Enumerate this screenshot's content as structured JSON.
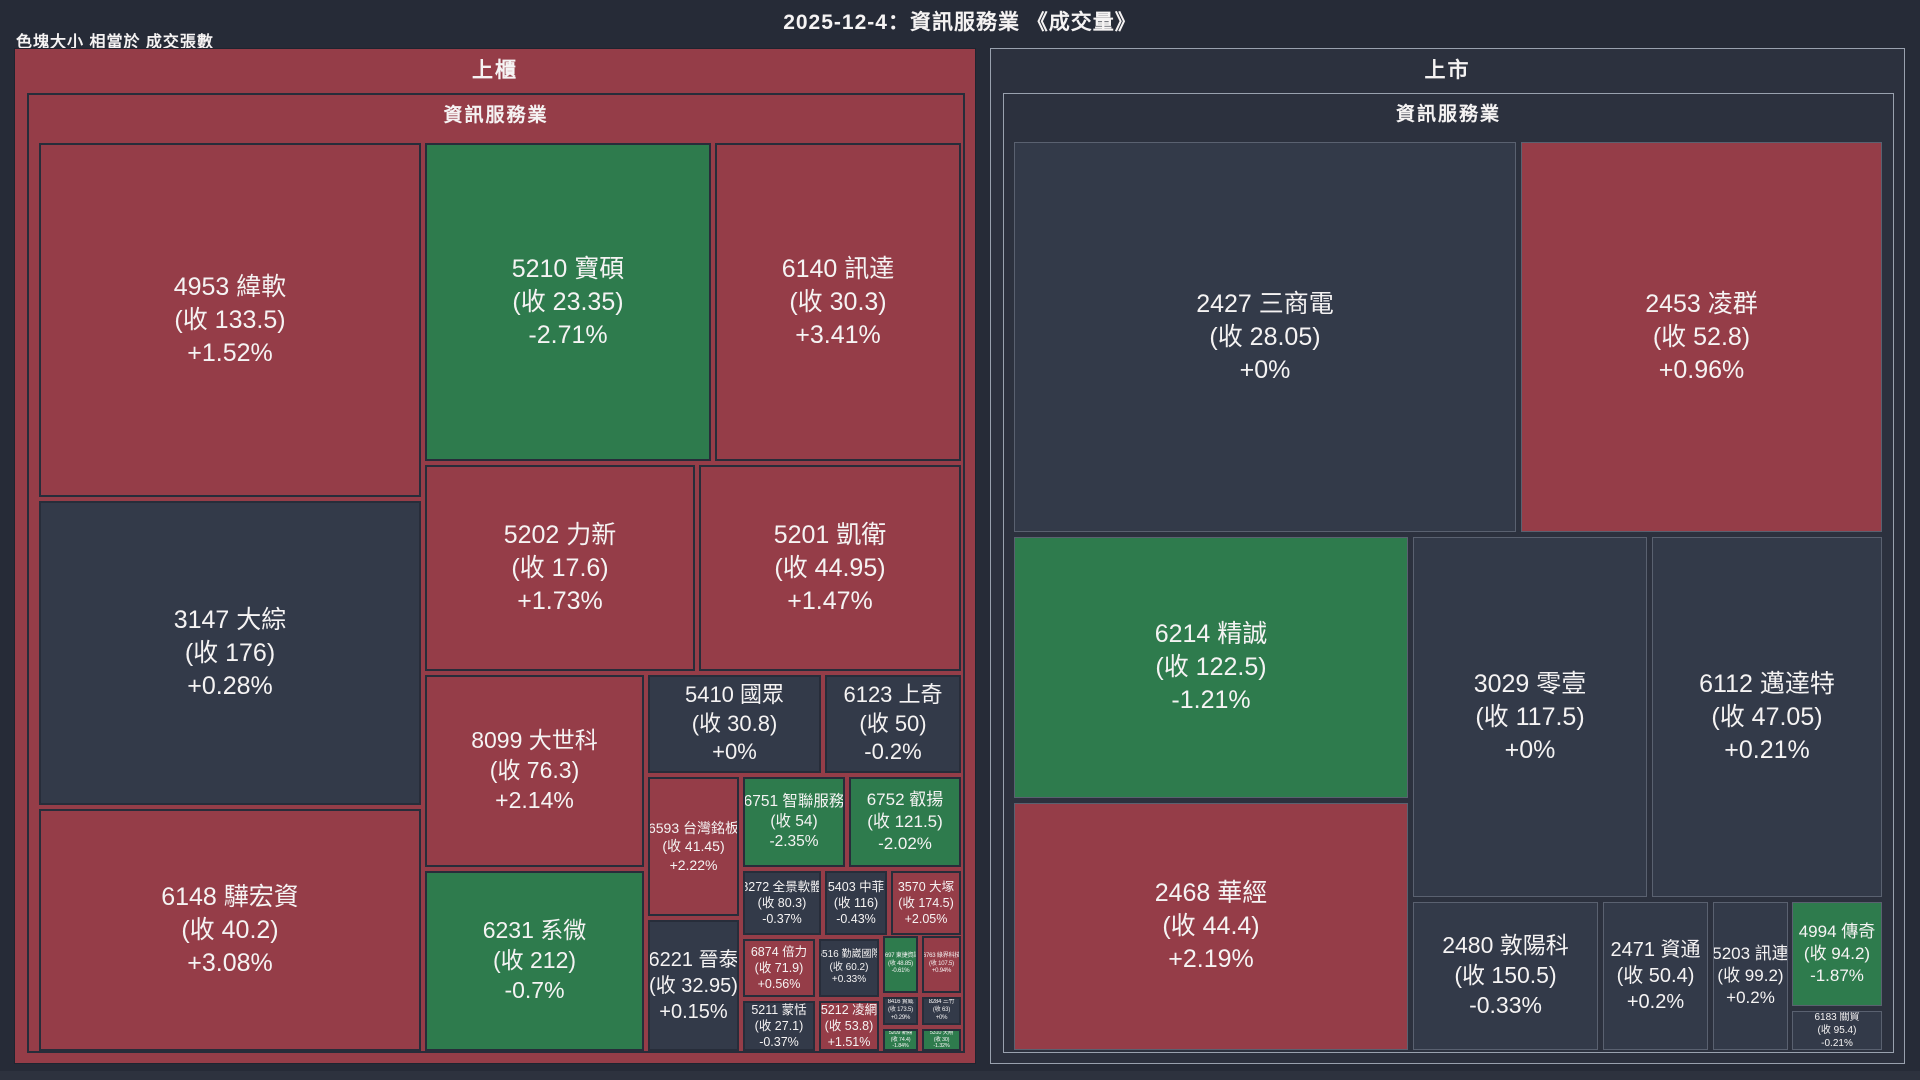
{
  "header": {
    "title": "2025-12-4：資訊服務業 《成交量》",
    "legend": "色塊大小 相當於 成交張數"
  },
  "colors": {
    "up": "#953d48",
    "down": "#2e7b4d",
    "flat": "#333a49",
    "panel_listed_bg": "#2c313e",
    "text": "#f5f3f3"
  },
  "price_prefix": "收",
  "panels": [
    {
      "id": "otc",
      "market": "上櫃",
      "industry": "資訊服務業",
      "stocks": [
        {
          "code": "4953",
          "name": "緯軟",
          "close": "133.5",
          "change": "+1.52%",
          "tone": "up"
        },
        {
          "code": "5210",
          "name": "寶碩",
          "close": "23.35",
          "change": "-2.71%",
          "tone": "down"
        },
        {
          "code": "6140",
          "name": "訊達",
          "close": "30.3",
          "change": "+3.41%",
          "tone": "up"
        },
        {
          "code": "3147",
          "name": "大綜",
          "close": "176",
          "change": "+0.28%",
          "tone": "flat"
        },
        {
          "code": "5202",
          "name": "力新",
          "close": "17.6",
          "change": "+1.73%",
          "tone": "up"
        },
        {
          "code": "5201",
          "name": "凱衛",
          "close": "44.95",
          "change": "+1.47%",
          "tone": "up"
        },
        {
          "code": "6148",
          "name": "驊宏資",
          "close": "40.2",
          "change": "+3.08%",
          "tone": "up"
        },
        {
          "code": "8099",
          "name": "大世科",
          "close": "76.3",
          "change": "+2.14%",
          "tone": "up"
        },
        {
          "code": "6231",
          "name": "系微",
          "close": "212",
          "change": "-0.7%",
          "tone": "down"
        },
        {
          "code": "5410",
          "name": "國眾",
          "close": "30.8",
          "change": "+0%",
          "tone": "flat"
        },
        {
          "code": "6123",
          "name": "上奇",
          "close": "50",
          "change": "-0.2%",
          "tone": "flat"
        },
        {
          "code": "6593",
          "name": "台灣銘板",
          "close": "41.45",
          "change": "+2.22%",
          "tone": "up"
        },
        {
          "code": "6751",
          "name": "智聯服務",
          "close": "54",
          "change": "-2.35%",
          "tone": "down"
        },
        {
          "code": "6752",
          "name": "叡揚",
          "close": "121.5",
          "change": "-2.02%",
          "tone": "down"
        },
        {
          "code": "6221",
          "name": "晉泰",
          "close": "32.95",
          "change": "+0.15%",
          "tone": "flat"
        },
        {
          "code": "8272",
          "name": "全景軟體",
          "close": "80.3",
          "change": "-0.37%",
          "tone": "flat"
        },
        {
          "code": "5403",
          "name": "中菲",
          "close": "116",
          "change": "-0.43%",
          "tone": "flat"
        },
        {
          "code": "3570",
          "name": "大塚",
          "close": "174.5",
          "change": "+2.05%",
          "tone": "up"
        },
        {
          "code": "6874",
          "name": "倍力",
          "close": "71.9",
          "change": "+0.56%",
          "tone": "up"
        },
        {
          "code": "6516",
          "name": "勤崴國際",
          "close": "60.2",
          "change": "+0.33%",
          "tone": "flat"
        },
        {
          "code": "5211",
          "name": "蒙恬",
          "close": "27.1",
          "change": "-0.37%",
          "tone": "flat"
        },
        {
          "code": "5212",
          "name": "凌網",
          "close": "53.8",
          "change": "+1.51%",
          "tone": "up"
        },
        {
          "code": "6697",
          "name": "東捷資訊",
          "close": "48.85",
          "change": "-0.61%",
          "tone": "down"
        },
        {
          "code": "6763",
          "name": "綠界科技",
          "close": "107.5",
          "change": "+0.94%",
          "tone": "up"
        },
        {
          "code": "8416",
          "name": "實威",
          "close": "173.5",
          "change": "+0.29%",
          "tone": "flat"
        },
        {
          "code": "8284",
          "name": "三竹",
          "close": "63",
          "change": "+0%",
          "tone": "flat"
        },
        {
          "code": "5209",
          "name": "新鼎",
          "close": "74.4",
          "change": "-1.84%",
          "tone": "down"
        },
        {
          "code": "5310",
          "name": "天剛",
          "close": "30",
          "change": "-1.32%",
          "tone": "down"
        }
      ]
    },
    {
      "id": "listed",
      "market": "上市",
      "industry": "資訊服務業",
      "stocks": [
        {
          "code": "2427",
          "name": "三商電",
          "close": "28.05",
          "change": "+0%",
          "tone": "flat"
        },
        {
          "code": "2453",
          "name": "凌群",
          "close": "52.8",
          "change": "+0.96%",
          "tone": "up"
        },
        {
          "code": "6214",
          "name": "精誠",
          "close": "122.5",
          "change": "-1.21%",
          "tone": "down"
        },
        {
          "code": "3029",
          "name": "零壹",
          "close": "117.5",
          "change": "+0%",
          "tone": "flat"
        },
        {
          "code": "6112",
          "name": "邁達特",
          "close": "47.05",
          "change": "+0.21%",
          "tone": "flat"
        },
        {
          "code": "2468",
          "name": "華經",
          "close": "44.4",
          "change": "+2.19%",
          "tone": "up"
        },
        {
          "code": "2480",
          "name": "敦陽科",
          "close": "150.5",
          "change": "-0.33%",
          "tone": "flat"
        },
        {
          "code": "2471",
          "name": "資通",
          "close": "50.4",
          "change": "+0.2%",
          "tone": "flat"
        },
        {
          "code": "5203",
          "name": "訊連",
          "close": "99.2",
          "change": "+0.2%",
          "tone": "flat"
        },
        {
          "code": "4994",
          "name": "傳奇",
          "close": "94.2",
          "change": "-1.87%",
          "tone": "down"
        },
        {
          "code": "6183",
          "name": "關貿",
          "close": "95.4",
          "change": "-0.21%",
          "tone": "flat"
        }
      ]
    }
  ],
  "chart_data": {
    "type": "heatmap",
    "subtype": "treemap",
    "title": "2025-12-4：資訊服務業 《成交量》",
    "size_metric": "成交張數 (trading volume, lots)",
    "color_rule": {
      "up": "red",
      "down": "green",
      "near_flat": "dark"
    },
    "groups": [
      {
        "market": "上櫃",
        "industry": "資訊服務業",
        "items": [
          {
            "code": "4953",
            "name": "緯軟",
            "close": 133.5,
            "change_pct": 1.52
          },
          {
            "code": "5210",
            "name": "寶碩",
            "close": 23.35,
            "change_pct": -2.71
          },
          {
            "code": "6140",
            "name": "訊達",
            "close": 30.3,
            "change_pct": 3.41
          },
          {
            "code": "3147",
            "name": "大綜",
            "close": 176,
            "change_pct": 0.28
          },
          {
            "code": "5202",
            "name": "力新",
            "close": 17.6,
            "change_pct": 1.73
          },
          {
            "code": "5201",
            "name": "凱衛",
            "close": 44.95,
            "change_pct": 1.47
          },
          {
            "code": "6148",
            "name": "驊宏資",
            "close": 40.2,
            "change_pct": 3.08
          },
          {
            "code": "8099",
            "name": "大世科",
            "close": 76.3,
            "change_pct": 2.14
          },
          {
            "code": "6231",
            "name": "系微",
            "close": 212,
            "change_pct": -0.7
          },
          {
            "code": "5410",
            "name": "國眾",
            "close": 30.8,
            "change_pct": 0
          },
          {
            "code": "6123",
            "name": "上奇",
            "close": 50,
            "change_pct": -0.2
          },
          {
            "code": "6593",
            "name": "台灣銘板",
            "close": 41.45,
            "change_pct": 2.22
          },
          {
            "code": "6751",
            "name": "智聯服務",
            "close": 54,
            "change_pct": -2.35
          },
          {
            "code": "6752",
            "name": "叡揚",
            "close": 121.5,
            "change_pct": -2.02
          },
          {
            "code": "6221",
            "name": "晉泰",
            "close": 32.95,
            "change_pct": 0.15
          },
          {
            "code": "8272",
            "name": "全景軟體",
            "close": 80.3,
            "change_pct": -0.37
          },
          {
            "code": "5403",
            "name": "中菲",
            "close": 116,
            "change_pct": -0.43
          },
          {
            "code": "3570",
            "name": "大塚",
            "close": 174.5,
            "change_pct": 2.05
          },
          {
            "code": "6874",
            "name": "倍力",
            "close": 71.9,
            "change_pct": 0.56
          },
          {
            "code": "6516",
            "name": "勤崴國際",
            "close": 60.2,
            "change_pct": 0.33
          },
          {
            "code": "5211",
            "name": "蒙恬",
            "close": 27.1,
            "change_pct": -0.37
          },
          {
            "code": "5212",
            "name": "凌網",
            "close": 53.8,
            "change_pct": 1.51
          },
          {
            "code": "6697",
            "name": "東捷資訊",
            "close": 48.85,
            "change_pct": -0.61
          },
          {
            "code": "6763",
            "name": "綠界科技",
            "close": 107.5,
            "change_pct": 0.94
          },
          {
            "code": "8416",
            "name": "實威",
            "close": 173.5,
            "change_pct": 0.29
          },
          {
            "code": "8284",
            "name": "三竹",
            "close": 63,
            "change_pct": 0
          },
          {
            "code": "5209",
            "name": "新鼎",
            "close": 74.4,
            "change_pct": -1.84
          },
          {
            "code": "5310",
            "name": "天剛",
            "close": 30,
            "change_pct": -1.32
          }
        ]
      },
      {
        "market": "上市",
        "industry": "資訊服務業",
        "items": [
          {
            "code": "2427",
            "name": "三商電",
            "close": 28.05,
            "change_pct": 0
          },
          {
            "code": "2453",
            "name": "凌群",
            "close": 52.8,
            "change_pct": 0.96
          },
          {
            "code": "6214",
            "name": "精誠",
            "close": 122.5,
            "change_pct": -1.21
          },
          {
            "code": "3029",
            "name": "零壹",
            "close": 117.5,
            "change_pct": 0
          },
          {
            "code": "6112",
            "name": "邁達特",
            "close": 47.05,
            "change_pct": 0.21
          },
          {
            "code": "2468",
            "name": "華經",
            "close": 44.4,
            "change_pct": 2.19
          },
          {
            "code": "2480",
            "name": "敦陽科",
            "close": 150.5,
            "change_pct": -0.33
          },
          {
            "code": "2471",
            "name": "資通",
            "close": 50.4,
            "change_pct": 0.2
          },
          {
            "code": "5203",
            "name": "訊連",
            "close": 99.2,
            "change_pct": 0.2
          },
          {
            "code": "4994",
            "name": "傳奇",
            "close": 94.2,
            "change_pct": -1.87
          },
          {
            "code": "6183",
            "name": "關貿",
            "close": 95.4,
            "change_pct": -0.21
          }
        ]
      }
    ]
  }
}
